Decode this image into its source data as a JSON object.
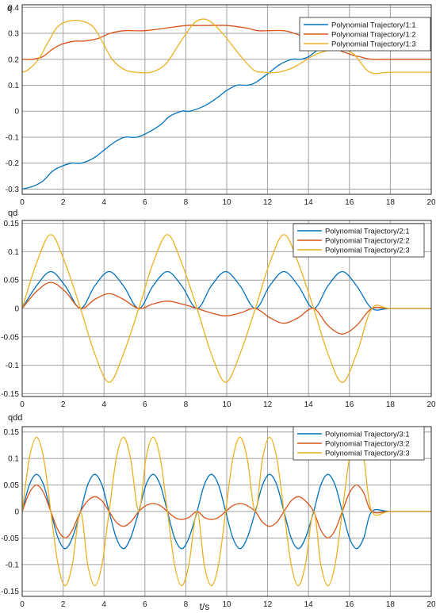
{
  "colors": {
    "series1": "#0072bd",
    "series2": "#d95319",
    "series3": "#edb120",
    "grid": "#a0a0a0",
    "axis": "#262626"
  },
  "x_axis": {
    "label": "t/s",
    "ticks": [
      "0",
      "2",
      "4",
      "6",
      "8",
      "10",
      "12",
      "14",
      "16",
      "18",
      "20"
    ]
  },
  "chart_data": [
    {
      "type": "line",
      "ylabel": "q",
      "xlim": [
        0,
        20
      ],
      "ylim": [
        -0.32,
        0.41
      ],
      "yticks": [
        "-0.3",
        "-0.2",
        "-0.1",
        "0",
        "0.1",
        "0.2",
        "0.3",
        "0.4"
      ],
      "grid": true,
      "legend_position": "top-right",
      "series": [
        {
          "name": "Polynomial Trajectory/1:1",
          "x": [
            0,
            0.5,
            1,
            1.5,
            2,
            2.43,
            2.9,
            3.5,
            4,
            4.5,
            5,
            5.6,
            6.2,
            6.8,
            7.2,
            7.8,
            8.2,
            8.9,
            9.5,
            10,
            10.5,
            11,
            11.4,
            12.1,
            12.6,
            13.2,
            13.6,
            14,
            14.5,
            15,
            15.5,
            16,
            16.4,
            16.8,
            17.1
          ],
          "values": [
            -0.3,
            -0.29,
            -0.27,
            -0.23,
            -0.21,
            -0.2,
            -0.2,
            -0.18,
            -0.15,
            -0.12,
            -0.1,
            -0.1,
            -0.08,
            -0.05,
            -0.02,
            0,
            0,
            0.02,
            0.05,
            0.08,
            0.1,
            0.1,
            0.11,
            0.15,
            0.18,
            0.2,
            0.2,
            0.21,
            0.24,
            0.27,
            0.3,
            0.31,
            0.32,
            0.32,
            0.33
          ]
        },
        {
          "name": "Polynomial Trajectory/1:2",
          "x": [
            0,
            0.5,
            1,
            1.5,
            2,
            2.6,
            3,
            3.7,
            4.3,
            5,
            6,
            7,
            8,
            8.5,
            9,
            10,
            11,
            11.5,
            12,
            12.8,
            13.3,
            14,
            15,
            16,
            16.5,
            17.1,
            18,
            20
          ],
          "values": [
            0.2,
            0.2,
            0.21,
            0.24,
            0.26,
            0.27,
            0.27,
            0.28,
            0.3,
            0.31,
            0.31,
            0.32,
            0.33,
            0.33,
            0.33,
            0.33,
            0.32,
            0.31,
            0.31,
            0.31,
            0.3,
            0.28,
            0.25,
            0.22,
            0.21,
            0.2,
            0.2,
            0.2
          ]
        },
        {
          "name": "Polynomial Trajectory/1:3",
          "x": [
            0,
            0.3,
            0.8,
            1.3,
            1.8,
            2.6,
            3.4,
            3.9,
            4.4,
            5,
            5.6,
            6.3,
            7,
            7.6,
            8.2,
            8.6,
            9.1,
            9.8,
            10.6,
            11.3,
            11.8,
            12.5,
            13.3,
            14.4,
            15.5,
            16.2,
            17,
            18,
            20
          ],
          "values": [
            0.15,
            0.16,
            0.2,
            0.27,
            0.33,
            0.35,
            0.33,
            0.27,
            0.2,
            0.16,
            0.15,
            0.15,
            0.18,
            0.25,
            0.32,
            0.35,
            0.35,
            0.3,
            0.22,
            0.16,
            0.15,
            0.15,
            0.17,
            0.22,
            0.24,
            0.22,
            0.15,
            0.15,
            0.15
          ]
        }
      ]
    },
    {
      "type": "line",
      "ylabel": "qd",
      "xlim": [
        0,
        20
      ],
      "ylim": [
        -0.155,
        0.155
      ],
      "yticks": [
        "-0.15",
        "-0.1",
        "-0.05",
        "0",
        "0.05",
        "0.1",
        "0.15"
      ],
      "grid": true,
      "legend_position": "top-right",
      "series": [
        {
          "name": "Polynomial Trajectory/2:1",
          "x": [
            0,
            0.7,
            1.4,
            2.1,
            2.85,
            3.55,
            4.25,
            4.95,
            5.7,
            6.4,
            7.1,
            7.8,
            8.55,
            9.25,
            9.95,
            10.65,
            11.4,
            12.1,
            12.8,
            13.5,
            14.25,
            14.95,
            15.65,
            16.35,
            17.1,
            18,
            20
          ],
          "values": [
            0,
            0.04,
            0.065,
            0.04,
            0,
            0.04,
            0.065,
            0.04,
            0,
            0.04,
            0.065,
            0.04,
            0,
            0.04,
            0.065,
            0.04,
            0,
            0.04,
            0.065,
            0.04,
            0,
            0.04,
            0.065,
            0.04,
            0,
            0,
            0
          ]
        },
        {
          "name": "Polynomial Trajectory/2:2",
          "x": [
            0,
            0.7,
            1.4,
            2.1,
            2.85,
            3.55,
            4.25,
            4.95,
            5.7,
            6.4,
            7.1,
            7.8,
            8.55,
            9.25,
            9.95,
            10.65,
            11.4,
            12.1,
            12.8,
            13.5,
            14.25,
            14.95,
            15.65,
            16.35,
            17.1,
            18,
            20
          ],
          "values": [
            0,
            0.03,
            0.046,
            0.03,
            0,
            0.016,
            0.026,
            0.016,
            0,
            0.008,
            0.013,
            0.008,
            0,
            -0.008,
            -0.013,
            -0.008,
            0,
            -0.016,
            -0.026,
            -0.016,
            0,
            -0.03,
            -0.045,
            -0.03,
            0,
            0,
            0
          ]
        },
        {
          "name": "Polynomial Trajectory/2:3",
          "x": [
            0,
            0.7,
            1.4,
            2.1,
            2.85,
            3.55,
            4.25,
            4.95,
            5.7,
            6.4,
            7.1,
            7.8,
            8.55,
            9.25,
            9.95,
            10.65,
            11.4,
            12.1,
            12.8,
            13.5,
            14.25,
            14.95,
            15.65,
            16.35,
            17.1,
            18,
            20
          ],
          "values": [
            0,
            0.08,
            0.13,
            0.08,
            0,
            -0.08,
            -0.13,
            -0.08,
            0,
            0.08,
            0.13,
            0.08,
            0,
            -0.08,
            -0.13,
            -0.08,
            0,
            0.08,
            0.13,
            0.08,
            0,
            -0.08,
            -0.13,
            -0.08,
            0,
            0,
            0
          ]
        }
      ]
    },
    {
      "type": "line",
      "ylabel": "qdd",
      "xlim": [
        0,
        20
      ],
      "ylim": [
        -0.16,
        0.16
      ],
      "yticks": [
        "-0.15",
        "-0.1",
        "-0.05",
        "0",
        "0.05",
        "0.1",
        "0.15"
      ],
      "grid": true,
      "legend_position": "top-right",
      "series": [
        {
          "name": "Polynomial Trajectory/3:1",
          "x": [
            0,
            0.35,
            0.7,
            1.05,
            1.4,
            1.75,
            2.1,
            2.45,
            2.85,
            3.2,
            3.55,
            3.9,
            4.25,
            4.6,
            4.95,
            5.3,
            5.7,
            6.05,
            6.4,
            6.75,
            7.1,
            7.45,
            7.8,
            8.15,
            8.55,
            8.9,
            9.25,
            9.6,
            9.95,
            10.3,
            10.65,
            11,
            11.4,
            11.75,
            12.1,
            12.45,
            12.8,
            13.15,
            13.5,
            13.85,
            14.25,
            14.6,
            14.95,
            15.3,
            15.65,
            16,
            16.35,
            16.7,
            17.1,
            18,
            20
          ],
          "values": [
            0,
            0.05,
            0.07,
            0.05,
            0,
            -0.05,
            -0.07,
            -0.05,
            0,
            0.05,
            0.07,
            0.05,
            0,
            -0.05,
            -0.07,
            -0.05,
            0,
            0.05,
            0.07,
            0.05,
            0,
            -0.05,
            -0.07,
            -0.05,
            0,
            0.05,
            0.07,
            0.05,
            0,
            -0.05,
            -0.07,
            -0.05,
            0,
            0.05,
            0.07,
            0.05,
            0,
            -0.05,
            -0.07,
            -0.05,
            0,
            0.05,
            0.07,
            0.05,
            0,
            -0.05,
            -0.07,
            -0.05,
            0,
            0,
            0
          ]
        },
        {
          "name": "Polynomial Trajectory/3:2",
          "x": [
            0,
            0.35,
            0.7,
            1.05,
            1.4,
            1.75,
            2.1,
            2.45,
            2.85,
            3.2,
            3.55,
            3.9,
            4.25,
            4.6,
            4.95,
            5.3,
            5.7,
            6.05,
            6.4,
            6.75,
            7.1,
            7.45,
            7.8,
            8.15,
            8.55,
            8.9,
            9.25,
            9.6,
            9.95,
            10.3,
            10.65,
            11,
            11.4,
            11.75,
            12.1,
            12.45,
            12.8,
            13.15,
            13.5,
            13.85,
            14.25,
            14.6,
            14.95,
            15.3,
            15.65,
            16,
            16.35,
            16.7,
            17.1,
            18,
            20
          ],
          "values": [
            0,
            0.035,
            0.05,
            0.035,
            0,
            -0.035,
            -0.05,
            -0.035,
            0,
            0.02,
            0.028,
            0.02,
            0,
            -0.02,
            -0.028,
            -0.02,
            0,
            0.011,
            0.015,
            0.011,
            0,
            -0.011,
            -0.015,
            -0.011,
            0,
            -0.011,
            -0.015,
            -0.011,
            0,
            0.011,
            0.015,
            0.011,
            0,
            -0.02,
            -0.028,
            -0.02,
            0,
            0.02,
            0.028,
            0.02,
            0,
            -0.035,
            -0.05,
            -0.035,
            0,
            0.035,
            0.05,
            0.035,
            0,
            0,
            0
          ]
        },
        {
          "name": "Polynomial Trajectory/3:3",
          "x": [
            0,
            0.35,
            0.7,
            1.05,
            1.4,
            1.75,
            2.1,
            2.45,
            2.85,
            3.2,
            3.55,
            3.9,
            4.25,
            4.6,
            4.95,
            5.3,
            5.7,
            6.05,
            6.4,
            6.75,
            7.1,
            7.45,
            7.8,
            8.15,
            8.55,
            8.9,
            9.25,
            9.6,
            9.95,
            10.3,
            10.65,
            11,
            11.4,
            11.75,
            12.1,
            12.45,
            12.8,
            13.15,
            13.5,
            13.85,
            14.25,
            14.6,
            14.95,
            15.3,
            15.65,
            16,
            16.35,
            16.7,
            17.1,
            18,
            20
          ],
          "values": [
            0,
            0.1,
            0.14,
            0.1,
            0,
            -0.1,
            -0.14,
            -0.1,
            0,
            -0.1,
            -0.14,
            -0.1,
            0,
            0.1,
            0.14,
            0.1,
            0,
            0.1,
            0.14,
            0.1,
            0,
            -0.1,
            -0.14,
            -0.1,
            0,
            -0.1,
            -0.14,
            -0.1,
            0,
            0.1,
            0.14,
            0.1,
            0,
            0.1,
            0.14,
            0.1,
            0,
            -0.1,
            -0.14,
            -0.1,
            0,
            -0.1,
            -0.14,
            -0.1,
            0,
            0.1,
            0.14,
            0.1,
            0,
            0,
            0
          ]
        }
      ]
    }
  ]
}
